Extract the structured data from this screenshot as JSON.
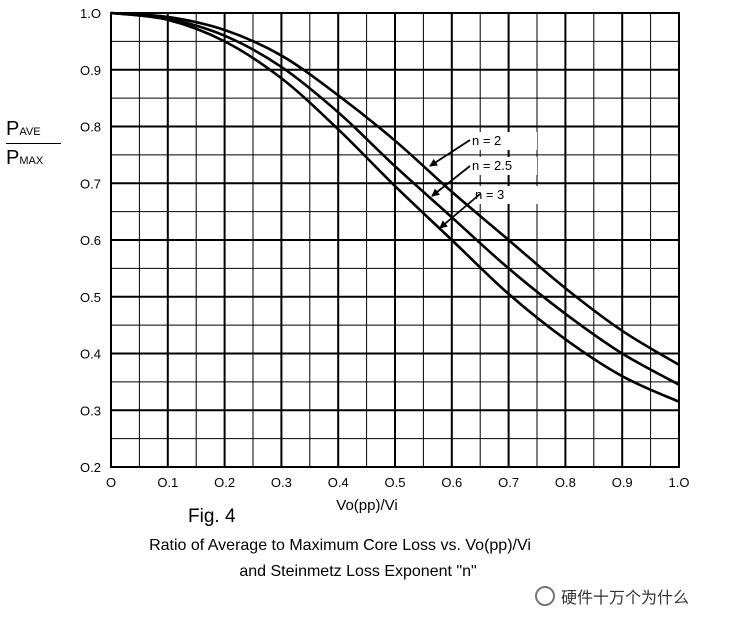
{
  "chart_data": {
    "type": "line",
    "x": [
      0,
      0.1,
      0.2,
      0.3,
      0.4,
      0.5,
      0.6,
      0.7,
      0.8,
      0.9,
      1.0
    ],
    "series": [
      {
        "name": "n = 2",
        "values": [
          1.0,
          0.993,
          0.97,
          0.925,
          0.855,
          0.775,
          0.685,
          0.6,
          0.515,
          0.44,
          0.38
        ]
      },
      {
        "name": "n = 2.5",
        "values": [
          1.0,
          0.99,
          0.96,
          0.905,
          0.825,
          0.73,
          0.64,
          0.55,
          0.47,
          0.4,
          0.345
        ]
      },
      {
        "name": "n = 3",
        "values": [
          1.0,
          0.988,
          0.95,
          0.885,
          0.795,
          0.695,
          0.6,
          0.505,
          0.425,
          0.36,
          0.315
        ]
      }
    ],
    "xlim": [
      0,
      1.0
    ],
    "ylim": [
      0.2,
      1.0
    ],
    "xticks": [
      "O",
      "O.1",
      "O.2",
      "O.3",
      "O.4",
      "O.5",
      "O.6",
      "O.7",
      "O.8",
      "O.9",
      "1.O"
    ],
    "yticks": [
      "O.2",
      "O.3",
      "O.4",
      "O.5",
      "O.6",
      "O.7",
      "O.8",
      "O.9",
      "1.O"
    ],
    "xlabel": "Vo(pp)/Vi",
    "ylabel": {
      "numerator": "P",
      "numerator_sub": "AVE",
      "denominator": "P",
      "denominator_sub": "MAX"
    },
    "grid": true,
    "legend": "inline-arrows",
    "line_color": "#000000"
  },
  "figure_label": "Fig. 4",
  "caption_line1": "Ratio of Average to Maximum Core Loss vs. Vo(pp)/Vi",
  "caption_line2": "and Steinmetz Loss Exponent \"n\"",
  "watermark": "硬件十万个为什么"
}
